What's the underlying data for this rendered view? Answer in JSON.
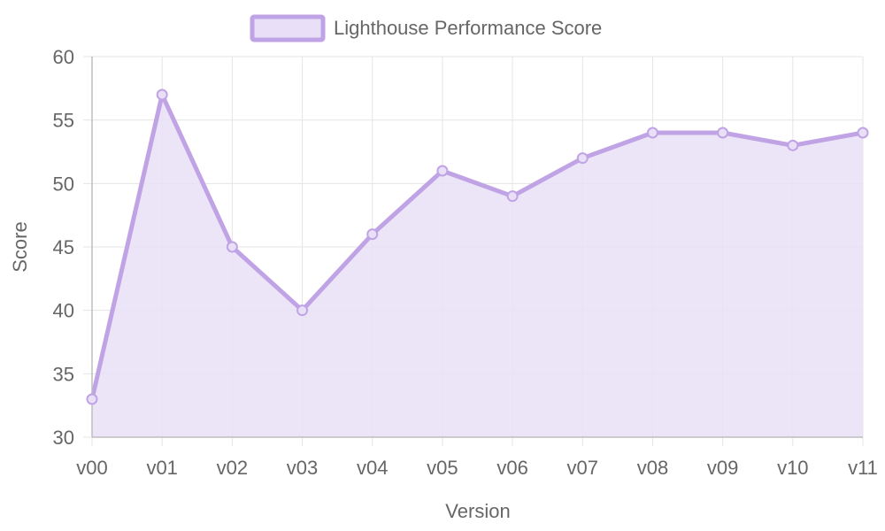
{
  "chart_data": {
    "type": "area",
    "categories": [
      "v00",
      "v01",
      "v02",
      "v03",
      "v04",
      "v05",
      "v06",
      "v07",
      "v08",
      "v09",
      "v10",
      "v11"
    ],
    "series": [
      {
        "name": "Lighthouse Performance Score",
        "values": [
          33,
          57,
          45,
          40,
          46,
          51,
          49,
          52,
          54,
          54,
          53,
          54
        ]
      }
    ],
    "xlabel": "Version",
    "ylabel": "Score",
    "ylim": [
      30,
      60
    ],
    "yticks": [
      "30",
      "35",
      "40",
      "45",
      "50",
      "55",
      "60"
    ],
    "grid": true,
    "legend_position": "top",
    "colors": {
      "line": "#c0a3e5",
      "fill": "#e9e0f7",
      "grid": "#e5e5e5",
      "text": "#666666"
    }
  }
}
